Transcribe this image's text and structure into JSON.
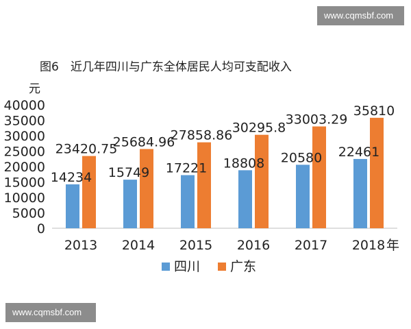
{
  "watermarks": {
    "top": "www.cqmsbf.com",
    "bottom": "www.cqmsbf.com"
  },
  "chart_data": {
    "type": "bar",
    "title": "图6　近几年四川与广东全体居民人均可支配收入",
    "ylabel": "元",
    "xlabel": "",
    "x_unit_suffix": "年",
    "categories": [
      "2013",
      "2014",
      "2015",
      "2016",
      "2017",
      "2018"
    ],
    "ylim": [
      0,
      40000
    ],
    "yticks": [
      0,
      5000,
      10000,
      15000,
      20000,
      25000,
      30000,
      35000,
      40000
    ],
    "grid": false,
    "legend_position": "bottom",
    "series": [
      {
        "name": "四川",
        "color": "#5b9bd5",
        "values": [
          14234,
          15749,
          17221,
          18808,
          20580,
          22461
        ],
        "labels": [
          "14234",
          "15749",
          "17221",
          "18808",
          "20580",
          "22461"
        ]
      },
      {
        "name": "广东",
        "color": "#ed7d31",
        "values": [
          23420.75,
          25684.96,
          27858.86,
          30295.8,
          33003.29,
          35810
        ],
        "labels": [
          "23420.75",
          "25684.96",
          "27858.86",
          "30295.8",
          "33003.29",
          "35810"
        ]
      }
    ]
  }
}
